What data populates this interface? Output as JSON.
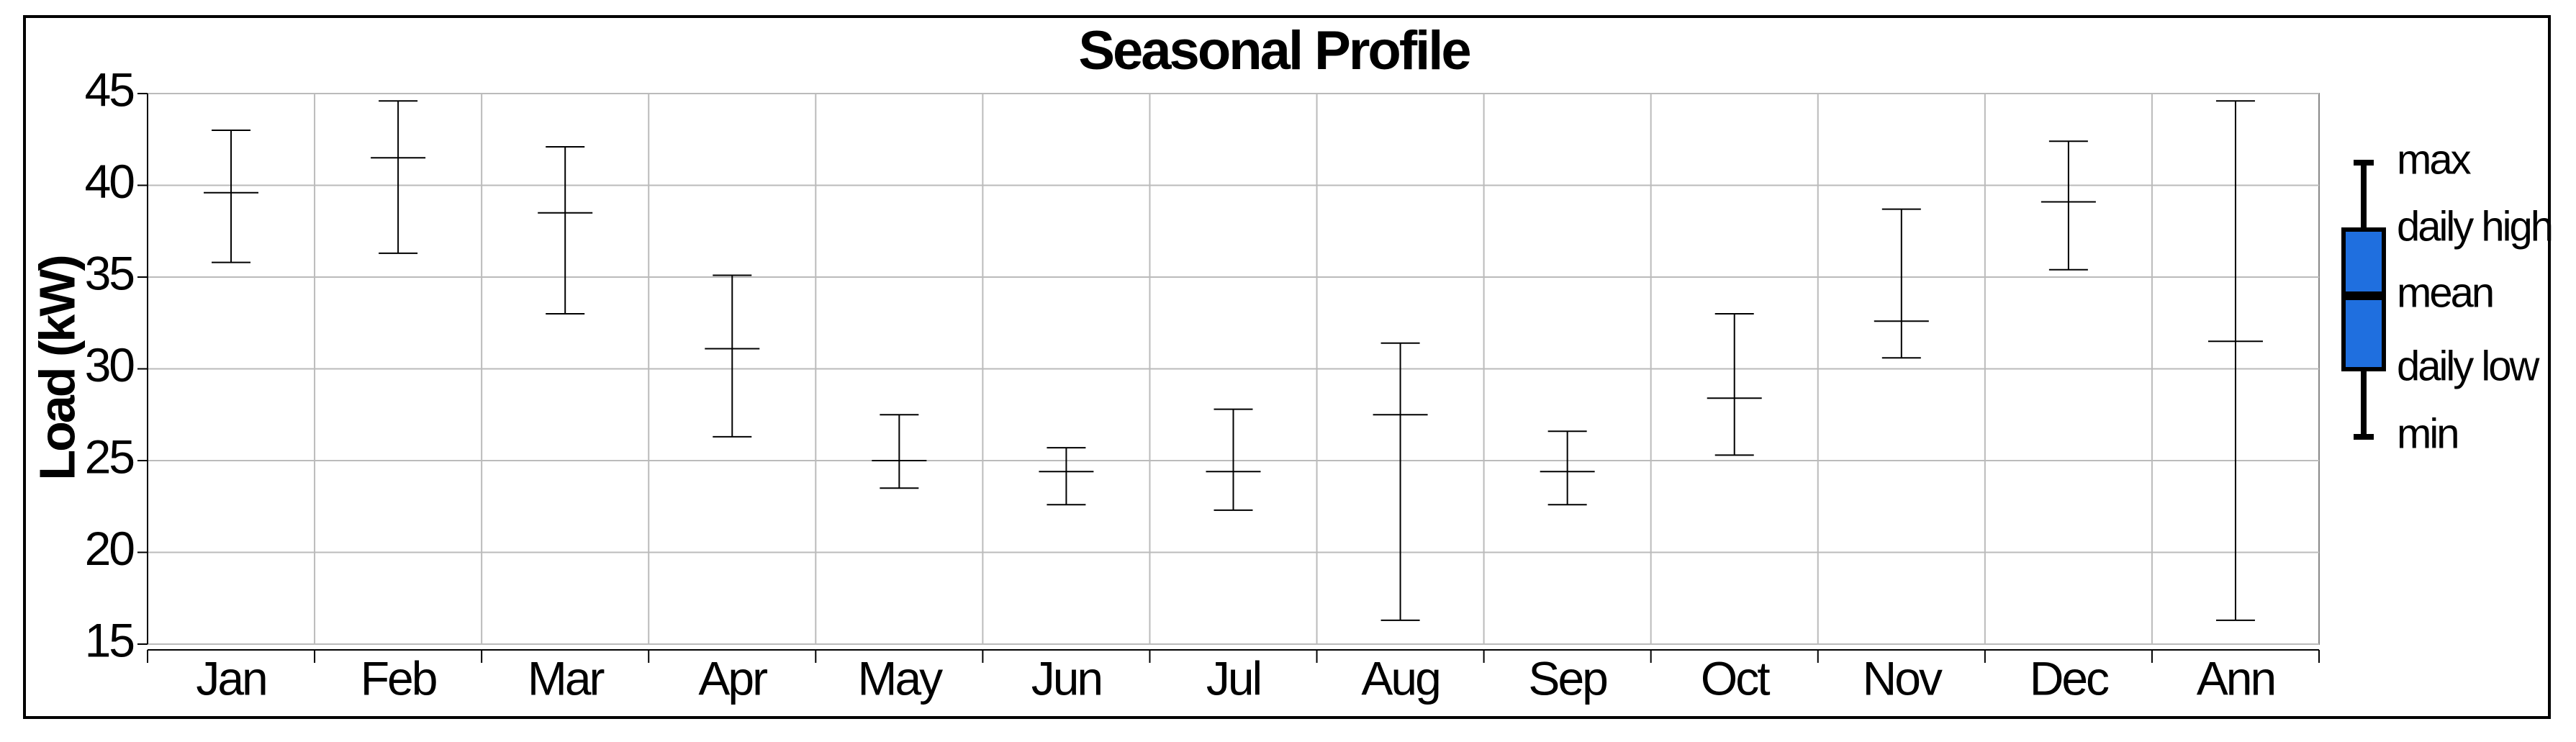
{
  "chart_data": {
    "type": "errorbar",
    "title": "Seasonal Profile",
    "y_label": "Load (kW)",
    "categories": [
      "Jan",
      "Feb",
      "Mar",
      "Apr",
      "May",
      "Jun",
      "Jul",
      "Aug",
      "Sep",
      "Oct",
      "Nov",
      "Dec",
      "Ann"
    ],
    "series": [
      {
        "name": "max",
        "color": "#000000",
        "values": [
          43.0,
          44.6,
          42.1,
          35.1,
          27.5,
          25.7,
          27.8,
          31.4,
          26.6,
          33.0,
          38.7,
          42.4,
          44.6
        ]
      },
      {
        "name": "mean",
        "color": "#000000",
        "values": [
          39.6,
          41.5,
          38.5,
          31.1,
          25.0,
          24.4,
          24.4,
          27.5,
          24.4,
          28.4,
          32.6,
          39.1,
          31.5
        ]
      },
      {
        "name": "min",
        "color": "#000000",
        "values": [
          35.8,
          36.3,
          33.0,
          26.3,
          23.5,
          22.6,
          22.3,
          16.3,
          22.6,
          25.3,
          30.6,
          35.4,
          16.3
        ]
      }
    ],
    "legend_box": {
      "upper": "daily high",
      "lower": "daily low",
      "color": "#1f6fdf"
    },
    "ylim": [
      15,
      45
    ],
    "yticks": [
      15,
      20,
      25,
      30,
      35,
      40,
      45
    ],
    "grid": true
  }
}
